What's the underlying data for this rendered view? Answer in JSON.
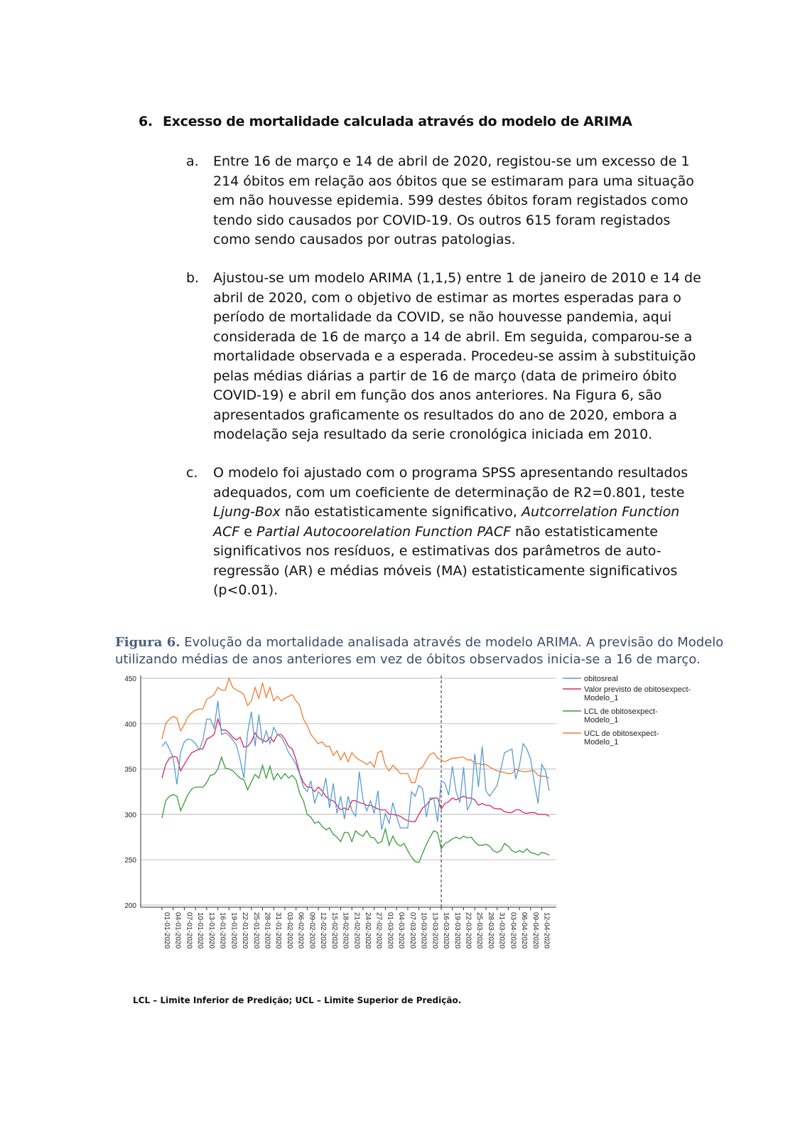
{
  "section": {
    "number": "6.",
    "title": "Excesso de mortalidade calculada através do modelo de ARIMA"
  },
  "items": [
    {
      "marker": "a.",
      "lines": [
        "Entre 16 de março e 14 de abril de 2020, registou-se um excesso de 1",
        "214 óbitos em relação aos óbitos que se estimaram para uma situação",
        "em não houvesse epidemia.  599 destes óbitos foram registados como",
        "tendo sido causados por COVID-19.  Os outros 615 foram registados",
        "como sendo causados por outras patologias."
      ]
    },
    {
      "marker": "b.",
      "lines": [
        "Ajustou-se um modelo ARIMA (1,1,5) entre 1 de janeiro de 2010 e 14 de",
        "abril de 2020, com o objetivo de estimar as mortes esperadas para o",
        "período de mortalidade da COVID, se não houvesse pandemia, aqui",
        "considerada de 16 de março a 14 de abril. Em seguida, comparou-se a",
        "mortalidade observada e a esperada. Procedeu-se assim à substituição",
        "pelas médias diárias a partir de 16 de março (data de primeiro óbito",
        "COVID-19) e abril em função dos anos anteriores. Na Figura 6, são",
        "apresentados graficamente os resultados do ano de 2020, embora a",
        "modelação seja resultado da serie cronológica iniciada em 2010."
      ]
    },
    {
      "marker": "c.",
      "lines": [
        "O modelo foi ajustado com o programa SPSS apresentando resultados",
        "adequados, com um coeficiente de determinação de R2=0.801, teste",
        "<i>Ljung-Box</i> não estatisticamente significativo, <i>Autcorrelation Function</i>",
        "<i>ACF</i> e <i>Partial Autocoorelation Function PACF</i> não estatisticamente",
        "significativos nos resíduos, e estimativas dos parâmetros de auto-",
        "regressão (AR) e médias móveis (MA) estatisticamente significativos",
        "(p<0.01)."
      ]
    }
  ],
  "caption": {
    "label": "Figura 6.",
    "line1": " Evolução da mortalidade analisada através de modelo ARIMA. A previsão do Modelo",
    "line2": "utilizando médias de anos anteriores em vez de óbitos observados inicia-se a 16 de março."
  },
  "footnote": "LCL – Limite Inferior de Predição; UCL – Limite Superior de Predição.",
  "chart_data": {
    "type": "line",
    "ylim": [
      200,
      450
    ],
    "yticks": [
      200,
      250,
      300,
      350,
      400,
      450
    ],
    "grid": true,
    "legend_position": "top-right",
    "forecast_start_index": 75,
    "xtick_labels": [
      "01-01-2020",
      "04-01-2020",
      "07-01-2020",
      "10-01-2020",
      "13-01-2020",
      "16-01-2020",
      "19-01-2020",
      "22-01-2020",
      "25-01-2020",
      "28-01-2020",
      "31-01-2020",
      "03-02-2020",
      "06-02-2020",
      "09-02-2020",
      "12-02-2020",
      "15-02-2020",
      "18-02-2020",
      "21-02-2020",
      "24-02-2020",
      "27-02-2020",
      "01-03-2020",
      "04-03-2020",
      "07-03-2020",
      "10-03-2020",
      "13-03-2020",
      "16-03-2020",
      "19-03-2020",
      "22-03-2020",
      "25-03-2020",
      "28-03-2020",
      "31-03-2020",
      "03-04-2020",
      "06-04-2020",
      "09-04-2020",
      "12-04-2020"
    ],
    "xtick_step": 3,
    "n_points": 105,
    "series": [
      {
        "name": "obitosreal",
        "color": "#5b9bd5",
        "values": [
          375,
          380,
          372,
          362,
          333,
          368,
          380,
          383,
          382,
          378,
          371,
          382,
          405,
          405,
          395,
          425,
          388,
          390,
          387,
          382,
          376,
          360,
          340,
          390,
          413,
          375,
          410,
          378,
          392,
          378,
          396,
          388,
          385,
          378,
          368,
          362,
          355,
          344,
          330,
          325,
          337,
          312,
          325,
          320,
          340,
          307,
          334,
          301,
          320,
          295,
          320,
          304,
          298,
          347,
          316,
          304,
          315,
          301,
          326,
          283,
          301,
          290,
          313,
          298,
          285,
          285,
          285,
          325,
          320,
          332,
          328,
          297,
          318,
          318,
          292,
          337,
          334,
          321,
          353,
          325,
          313,
          352,
          305,
          313,
          367,
          330,
          375,
          326,
          320,
          326,
          332,
          350,
          368,
          370,
          372,
          339,
          354,
          378,
          372,
          361,
          335,
          312,
          355,
          348,
          326
        ]
      },
      {
        "name": "Valor previsto de obitosexpect-Modelo_1",
        "color": "#d6285a",
        "values": [
          340,
          355,
          362,
          364,
          363,
          348,
          355,
          362,
          368,
          370,
          372,
          372,
          383,
          385,
          388,
          405,
          393,
          393,
          390,
          385,
          382,
          385,
          374,
          375,
          380,
          390,
          384,
          382,
          380,
          385,
          380,
          388,
          388,
          383,
          375,
          372,
          360,
          345,
          335,
          330,
          330,
          325,
          330,
          326,
          320,
          316,
          315,
          310,
          305,
          307,
          305,
          315,
          315,
          313,
          312,
          310,
          310,
          308,
          306,
          305,
          305,
          300,
          300,
          299,
          298,
          295,
          293,
          292,
          292,
          300,
          307,
          310,
          316,
          318,
          318,
          306,
          312,
          314,
          318,
          316,
          318,
          320,
          318,
          318,
          316,
          310,
          312,
          310,
          310,
          307,
          306,
          306,
          303,
          302,
          302,
          305,
          305,
          302,
          301,
          302,
          302,
          300,
          300,
          300,
          298
        ]
      },
      {
        "name": "LCL de obitosexpect-Modelo_1",
        "color": "#3a9a3a",
        "values": [
          296,
          315,
          320,
          322,
          320,
          304,
          313,
          322,
          328,
          330,
          330,
          330,
          335,
          343,
          344,
          350,
          363,
          351,
          350,
          348,
          344,
          340,
          338,
          327,
          336,
          344,
          340,
          354,
          340,
          353,
          338,
          345,
          339,
          345,
          340,
          343,
          338,
          323,
          315,
          300,
          297,
          290,
          292,
          287,
          283,
          285,
          278,
          275,
          270,
          280,
          280,
          270,
          282,
          278,
          276,
          282,
          275,
          274,
          268,
          270,
          284,
          266,
          276,
          268,
          265,
          268,
          260,
          253,
          248,
          247,
          257,
          267,
          275,
          282,
          280,
          262,
          268,
          270,
          273,
          275,
          273,
          276,
          274,
          275,
          270,
          266,
          266,
          267,
          265,
          260,
          258,
          260,
          268,
          265,
          260,
          258,
          260,
          258,
          262,
          258,
          257,
          255,
          258,
          257,
          255
        ]
      },
      {
        "name": "UCL de obitosexpect-Modelo_1",
        "color": "#ed7d31",
        "values": [
          383,
          400,
          405,
          408,
          406,
          392,
          399,
          408,
          412,
          415,
          416,
          416,
          427,
          429,
          432,
          440,
          437,
          437,
          450,
          440,
          437,
          435,
          432,
          420,
          425,
          440,
          428,
          445,
          429,
          440,
          425,
          430,
          425,
          428,
          430,
          432,
          425,
          420,
          405,
          398,
          388,
          383,
          378,
          380,
          375,
          375,
          365,
          370,
          360,
          368,
          358,
          368,
          363,
          360,
          358,
          355,
          358,
          352,
          368,
          370,
          354,
          348,
          354,
          350,
          345,
          345,
          345,
          335,
          335,
          350,
          352,
          360,
          366,
          368,
          362,
          360,
          358,
          360,
          362,
          362,
          363,
          363,
          360,
          360,
          356,
          356,
          355,
          355,
          352,
          350,
          348,
          347,
          346,
          345,
          345,
          350,
          348,
          347,
          347,
          348,
          348,
          343,
          342,
          342,
          340
        ]
      }
    ]
  }
}
